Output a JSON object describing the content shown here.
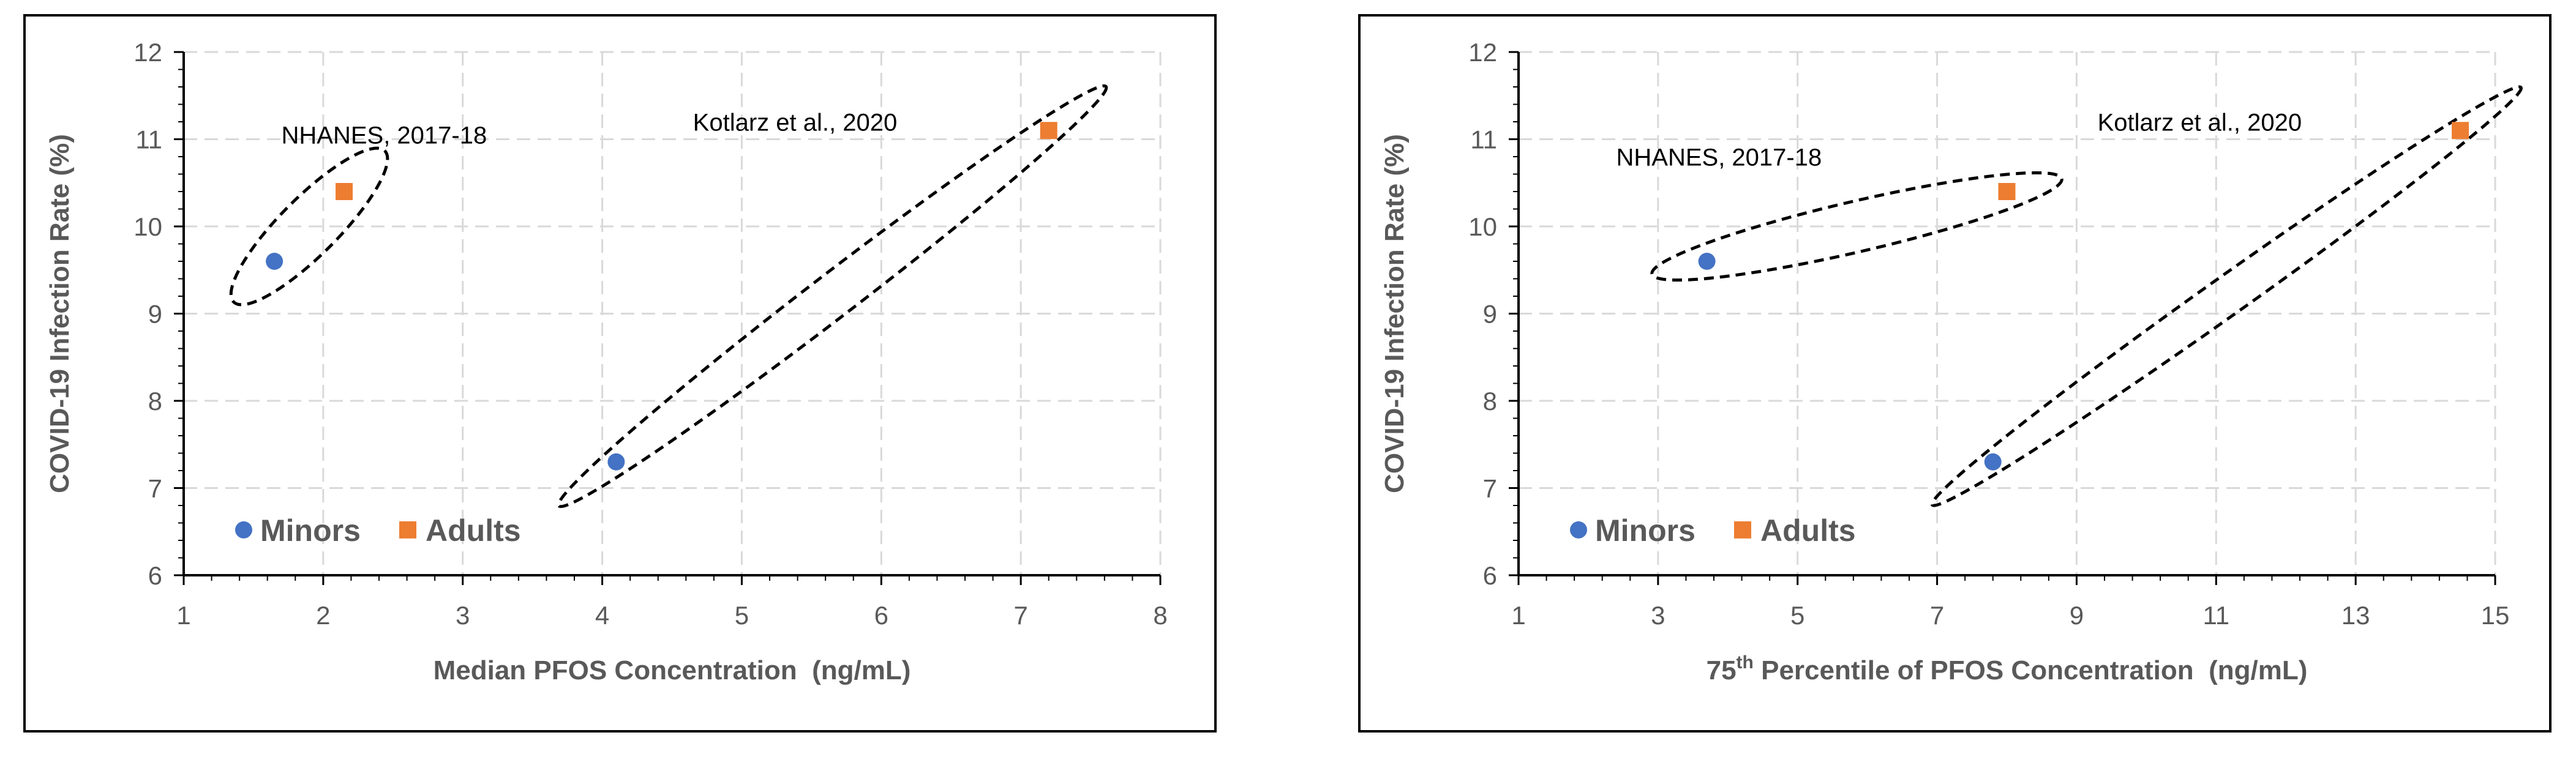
{
  "colors": {
    "minors": "#4472C4",
    "adults": "#ED7D31",
    "grid": "#D9D9D9",
    "axis": "#000000",
    "text": "#595959"
  },
  "chart_data": [
    {
      "type": "scatter",
      "title": "",
      "xlabel": "Median PFOS Concentration  (ng/mL)",
      "xlabel_parts": {
        "prefix": "",
        "sup": "",
        "rest": "Median PFOS Concentration  (ng/mL)"
      },
      "ylabel": "COVID-19 Infection Rate (%)",
      "xlim": [
        1,
        8
      ],
      "ylim": [
        6,
        12
      ],
      "xticks": [
        1,
        2,
        3,
        4,
        5,
        6,
        7,
        8
      ],
      "yticks": [
        6,
        7,
        8,
        9,
        10,
        11,
        12
      ],
      "series": [
        {
          "name": "Minors",
          "marker": "circle",
          "points": [
            {
              "x": 1.65,
              "y": 9.6
            },
            {
              "x": 4.1,
              "y": 7.3
            }
          ]
        },
        {
          "name": "Adults",
          "marker": "square",
          "points": [
            {
              "x": 2.15,
              "y": 10.4
            },
            {
              "x": 7.2,
              "y": 11.1
            }
          ]
        }
      ],
      "legend": [
        "Minors",
        "Adults"
      ],
      "legend_position": "bottom-left",
      "annotations": [
        {
          "text": "NHANES, 2017-18",
          "x": 1.7,
          "y": 10.95
        },
        {
          "text": "Kotlarz et al., 2020",
          "x": 4.65,
          "y": 11.1
        }
      ],
      "groups": [
        {
          "label": "NHANES, 2017-18",
          "x1": 1.65,
          "y1": 9.6,
          "x2": 2.15,
          "y2": 10.4,
          "pad": 0.55,
          "minor": 0.33
        },
        {
          "label": "Kotlarz et al., 2020",
          "x1": 4.1,
          "y1": 7.3,
          "x2": 7.2,
          "y2": 11.1,
          "pad": 0.65,
          "minor": 0.25
        }
      ]
    },
    {
      "type": "scatter",
      "title": "",
      "xlabel": "75th Percentile of PFOS Concentration  (ng/mL)",
      "xlabel_parts": {
        "prefix": "75",
        "sup": "th",
        "rest": " Percentile of PFOS Concentration  (ng/mL)"
      },
      "ylabel": "COVID-19 Infection Rate (%)",
      "xlim": [
        1,
        15
      ],
      "ylim": [
        6,
        12
      ],
      "xticks": [
        1,
        3,
        5,
        7,
        9,
        11,
        13,
        15
      ],
      "yticks": [
        6,
        7,
        8,
        9,
        10,
        11,
        12
      ],
      "series": [
        {
          "name": "Minors",
          "marker": "circle",
          "points": [
            {
              "x": 3.7,
              "y": 9.6
            },
            {
              "x": 7.8,
              "y": 7.3
            }
          ]
        },
        {
          "name": "Adults",
          "marker": "square",
          "points": [
            {
              "x": 8.0,
              "y": 10.4
            },
            {
              "x": 14.5,
              "y": 11.1
            }
          ]
        }
      ],
      "legend": [
        "Minors",
        "Adults"
      ],
      "legend_position": "bottom-left",
      "annotations": [
        {
          "text": "NHANES, 2017-18",
          "x": 2.4,
          "y": 10.7
        },
        {
          "text": "Kotlarz et al., 2020",
          "x": 9.3,
          "y": 11.1
        }
      ],
      "groups": [
        {
          "label": "NHANES, 2017-18",
          "x1": 3.7,
          "y1": 9.6,
          "x2": 8.0,
          "y2": 10.4,
          "pad": 0.8,
          "minor": 0.29
        },
        {
          "label": "Kotlarz et al., 2020",
          "x1": 7.8,
          "y1": 7.3,
          "x2": 14.5,
          "y2": 11.1,
          "pad": 1.0,
          "minor": 0.22
        }
      ]
    }
  ]
}
